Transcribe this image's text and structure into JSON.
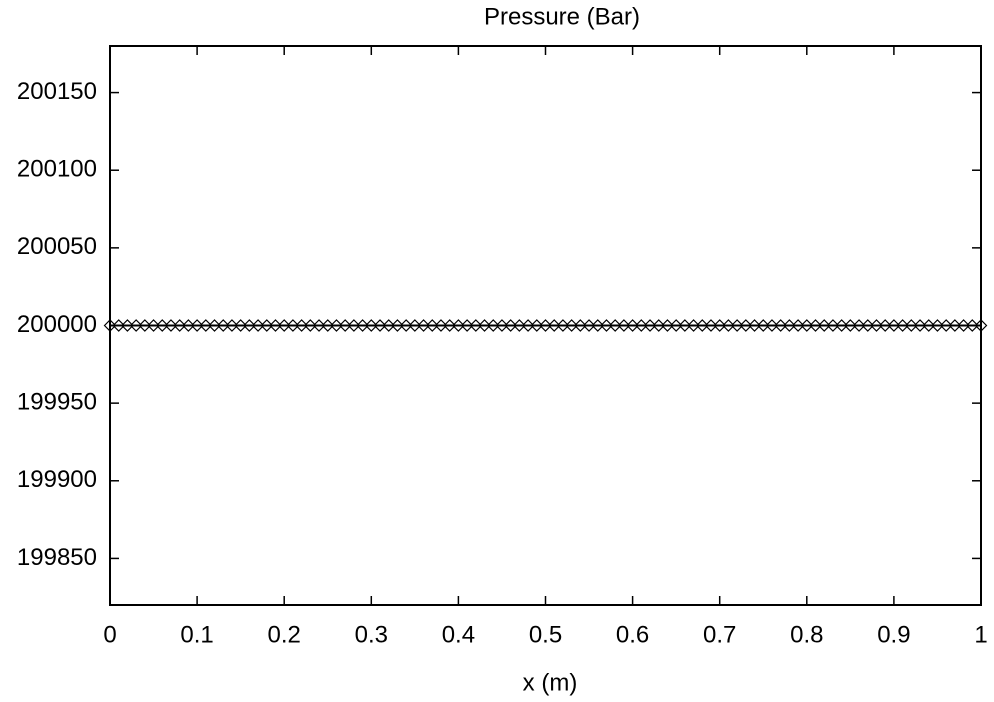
{
  "chart_data": {
    "type": "line",
    "title": "Pressure (Bar)",
    "x_label": "x (m)",
    "x": [
      0,
      0.01,
      0.02,
      0.03,
      0.04,
      0.05,
      0.06,
      0.07,
      0.08,
      0.09,
      0.1,
      0.11,
      0.12,
      0.13,
      0.14,
      0.15,
      0.16,
      0.17,
      0.18,
      0.19,
      0.2,
      0.21,
      0.22,
      0.23,
      0.24,
      0.25,
      0.26,
      0.27,
      0.28,
      0.29,
      0.3,
      0.31,
      0.32,
      0.33,
      0.34,
      0.35,
      0.36,
      0.37,
      0.38,
      0.39,
      0.4,
      0.41,
      0.42,
      0.43,
      0.44,
      0.45,
      0.46,
      0.47,
      0.48,
      0.49,
      0.5,
      0.51,
      0.52,
      0.53,
      0.54,
      0.55,
      0.56,
      0.57,
      0.58,
      0.59,
      0.6,
      0.61,
      0.62,
      0.63,
      0.64,
      0.65,
      0.66,
      0.67,
      0.68,
      0.69,
      0.7,
      0.71,
      0.72,
      0.73,
      0.74,
      0.75,
      0.76,
      0.77,
      0.78,
      0.79,
      0.8,
      0.81,
      0.82,
      0.83,
      0.84,
      0.85,
      0.86,
      0.87,
      0.88,
      0.89,
      0.9,
      0.91,
      0.92,
      0.93,
      0.94,
      0.95,
      0.96,
      0.97,
      0.98,
      0.99,
      1
    ],
    "values": [
      200000,
      200000,
      200000,
      200000,
      200000,
      200000,
      200000,
      200000,
      200000,
      200000,
      200000,
      200000,
      200000,
      200000,
      200000,
      200000,
      200000,
      200000,
      200000,
      200000,
      200000,
      200000,
      200000,
      200000,
      200000,
      200000,
      200000,
      200000,
      200000,
      200000,
      200000,
      200000,
      200000,
      200000,
      200000,
      200000,
      200000,
      200000,
      200000,
      200000,
      200000,
      200000,
      200000,
      200000,
      200000,
      200000,
      200000,
      200000,
      200000,
      200000,
      200000,
      200000,
      200000,
      200000,
      200000,
      200000,
      200000,
      200000,
      200000,
      200000,
      200000,
      200000,
      200000,
      200000,
      200000,
      200000,
      200000,
      200000,
      200000,
      200000,
      200000,
      200000,
      200000,
      200000,
      200000,
      200000,
      200000,
      200000,
      200000,
      200000,
      200000,
      200000,
      200000,
      200000,
      200000,
      200000,
      200000,
      200000,
      200000,
      200000,
      200000,
      200000,
      200000,
      200000,
      200000,
      200000,
      200000,
      200000,
      200000,
      200000,
      200000
    ],
    "color": "#000000",
    "marker": "diamond",
    "xlim": [
      0,
      1
    ],
    "xticks": [
      0,
      0.1,
      0.2,
      0.3,
      0.4,
      0.5,
      0.6,
      0.7,
      0.8,
      0.9,
      1
    ],
    "ylim": [
      199820,
      200180
    ],
    "yticks": [
      199850,
      199900,
      199950,
      200000,
      200050,
      200100,
      200150
    ]
  }
}
